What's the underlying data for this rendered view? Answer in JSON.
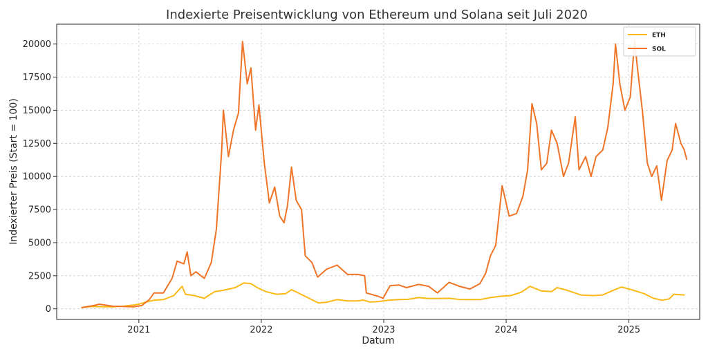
{
  "chart_data": {
    "type": "line",
    "title": "Indexierte Preisentwicklung von Ethereum und Solana seit Juli 2020",
    "xlabel": "Datum",
    "ylabel": "Indexierter Preis (Start = 100)",
    "x_axis_type": "date",
    "xlim": [
      "2020-05-01",
      "2025-07-31"
    ],
    "ylim": [
      -800,
      21500
    ],
    "x_ticks": [
      "2021",
      "2022",
      "2023",
      "2024",
      "2025"
    ],
    "x_tick_dates": [
      "2021-01-01",
      "2022-01-01",
      "2023-01-01",
      "2024-01-01",
      "2025-01-01"
    ],
    "y_ticks": [
      0,
      2500,
      5000,
      7500,
      10000,
      12500,
      15000,
      17500,
      20000
    ],
    "grid": true,
    "grid_style": "dashed",
    "legend_position": "top-right",
    "series": [
      {
        "name": "ETH",
        "color": "#FBB917",
        "points": [
          [
            "2020-07-15",
            100
          ],
          [
            "2020-08-15",
            180
          ],
          [
            "2020-09-15",
            160
          ],
          [
            "2020-10-15",
            150
          ],
          [
            "2020-11-15",
            200
          ],
          [
            "2020-12-15",
            280
          ],
          [
            "2021-01-01",
            350
          ],
          [
            "2021-01-20",
            500
          ],
          [
            "2021-02-15",
            650
          ],
          [
            "2021-03-15",
            700
          ],
          [
            "2021-04-15",
            1000
          ],
          [
            "2021-05-10",
            1700
          ],
          [
            "2021-05-20",
            1100
          ],
          [
            "2021-06-15",
            1000
          ],
          [
            "2021-07-15",
            800
          ],
          [
            "2021-08-15",
            1300
          ],
          [
            "2021-09-10",
            1400
          ],
          [
            "2021-10-15",
            1600
          ],
          [
            "2021-11-10",
            1950
          ],
          [
            "2021-12-01",
            1900
          ],
          [
            "2021-12-20",
            1600
          ],
          [
            "2022-01-15",
            1300
          ],
          [
            "2022-02-15",
            1100
          ],
          [
            "2022-03-15",
            1150
          ],
          [
            "2022-04-01",
            1450
          ],
          [
            "2022-05-15",
            900
          ],
          [
            "2022-06-20",
            450
          ],
          [
            "2022-07-15",
            500
          ],
          [
            "2022-08-15",
            700
          ],
          [
            "2022-09-15",
            600
          ],
          [
            "2022-10-15",
            600
          ],
          [
            "2022-11-01",
            660
          ],
          [
            "2022-11-20",
            520
          ],
          [
            "2022-12-15",
            550
          ],
          [
            "2023-01-15",
            650
          ],
          [
            "2023-02-15",
            700
          ],
          [
            "2023-03-15",
            720
          ],
          [
            "2023-04-15",
            850
          ],
          [
            "2023-05-15",
            780
          ],
          [
            "2023-06-15",
            780
          ],
          [
            "2023-07-15",
            800
          ],
          [
            "2023-08-15",
            710
          ],
          [
            "2023-09-15",
            700
          ],
          [
            "2023-10-15",
            700
          ],
          [
            "2023-11-15",
            850
          ],
          [
            "2023-12-15",
            950
          ],
          [
            "2024-01-15",
            1000
          ],
          [
            "2024-02-15",
            1250
          ],
          [
            "2024-03-12",
            1700
          ],
          [
            "2024-04-15",
            1350
          ],
          [
            "2024-05-15",
            1300
          ],
          [
            "2024-06-01",
            1600
          ],
          [
            "2024-07-01",
            1400
          ],
          [
            "2024-08-10",
            1050
          ],
          [
            "2024-09-15",
            1000
          ],
          [
            "2024-10-15",
            1050
          ],
          [
            "2024-11-15",
            1400
          ],
          [
            "2024-12-10",
            1650
          ],
          [
            "2025-01-15",
            1400
          ],
          [
            "2025-02-15",
            1150
          ],
          [
            "2025-03-15",
            800
          ],
          [
            "2025-04-10",
            650
          ],
          [
            "2025-05-01",
            750
          ],
          [
            "2025-05-15",
            1100
          ],
          [
            "2025-06-15",
            1050
          ]
        ]
      },
      {
        "name": "SOL",
        "color": "#F07427",
        "points": [
          [
            "2020-07-15",
            100
          ],
          [
            "2020-08-20",
            250
          ],
          [
            "2020-09-05",
            350
          ],
          [
            "2020-10-15",
            200
          ],
          [
            "2020-11-15",
            180
          ],
          [
            "2020-12-15",
            150
          ],
          [
            "2021-01-10",
            250
          ],
          [
            "2021-02-01",
            700
          ],
          [
            "2021-02-15",
            1200
          ],
          [
            "2021-03-15",
            1200
          ],
          [
            "2021-04-10",
            2300
          ],
          [
            "2021-04-25",
            3600
          ],
          [
            "2021-05-15",
            3400
          ],
          [
            "2021-05-25",
            4300
          ],
          [
            "2021-06-05",
            2500
          ],
          [
            "2021-06-20",
            2800
          ],
          [
            "2021-07-15",
            2300
          ],
          [
            "2021-08-05",
            3500
          ],
          [
            "2021-08-20",
            6000
          ],
          [
            "2021-09-05",
            12000
          ],
          [
            "2021-09-10",
            15000
          ],
          [
            "2021-09-25",
            11500
          ],
          [
            "2021-10-10",
            13500
          ],
          [
            "2021-10-25",
            14800
          ],
          [
            "2021-11-06",
            20200
          ],
          [
            "2021-11-20",
            17000
          ],
          [
            "2021-12-01",
            18200
          ],
          [
            "2021-12-15",
            13500
          ],
          [
            "2021-12-25",
            15400
          ],
          [
            "2022-01-10",
            11000
          ],
          [
            "2022-01-25",
            8000
          ],
          [
            "2022-02-10",
            9200
          ],
          [
            "2022-02-25",
            7000
          ],
          [
            "2022-03-10",
            6500
          ],
          [
            "2022-03-20",
            7800
          ],
          [
            "2022-04-01",
            10700
          ],
          [
            "2022-04-15",
            8200
          ],
          [
            "2022-05-01",
            7500
          ],
          [
            "2022-05-12",
            4000
          ],
          [
            "2022-06-01",
            3500
          ],
          [
            "2022-06-18",
            2400
          ],
          [
            "2022-07-15",
            3000
          ],
          [
            "2022-08-15",
            3300
          ],
          [
            "2022-09-15",
            2600
          ],
          [
            "2022-10-15",
            2600
          ],
          [
            "2022-11-05",
            2500
          ],
          [
            "2022-11-10",
            1200
          ],
          [
            "2022-12-15",
            950
          ],
          [
            "2022-12-30",
            800
          ],
          [
            "2023-01-20",
            1750
          ],
          [
            "2023-02-15",
            1800
          ],
          [
            "2023-03-10",
            1600
          ],
          [
            "2023-04-15",
            1850
          ],
          [
            "2023-05-15",
            1700
          ],
          [
            "2023-06-10",
            1200
          ],
          [
            "2023-07-15",
            2000
          ],
          [
            "2023-08-15",
            1700
          ],
          [
            "2023-09-15",
            1500
          ],
          [
            "2023-10-15",
            1900
          ],
          [
            "2023-11-01",
            2700
          ],
          [
            "2023-11-15",
            4000
          ],
          [
            "2023-12-01",
            4800
          ],
          [
            "2023-12-20",
            9300
          ],
          [
            "2024-01-10",
            7000
          ],
          [
            "2024-02-01",
            7200
          ],
          [
            "2024-02-20",
            8500
          ],
          [
            "2024-03-05",
            10500
          ],
          [
            "2024-03-18",
            15500
          ],
          [
            "2024-04-01",
            14000
          ],
          [
            "2024-04-15",
            10500
          ],
          [
            "2024-05-01",
            11000
          ],
          [
            "2024-05-15",
            13500
          ],
          [
            "2024-06-01",
            12500
          ],
          [
            "2024-06-20",
            10000
          ],
          [
            "2024-07-05",
            11000
          ],
          [
            "2024-07-25",
            14500
          ],
          [
            "2024-08-05",
            10500
          ],
          [
            "2024-08-25",
            11500
          ],
          [
            "2024-09-10",
            10000
          ],
          [
            "2024-09-25",
            11500
          ],
          [
            "2024-10-15",
            12000
          ],
          [
            "2024-10-30",
            13700
          ],
          [
            "2024-11-15",
            17000
          ],
          [
            "2024-11-22",
            20000
          ],
          [
            "2024-12-05",
            17000
          ],
          [
            "2024-12-20",
            15000
          ],
          [
            "2025-01-05",
            16000
          ],
          [
            "2025-01-18",
            20300
          ],
          [
            "2025-01-25",
            18500
          ],
          [
            "2025-02-10",
            15000
          ],
          [
            "2025-02-25",
            11000
          ],
          [
            "2025-03-10",
            10000
          ],
          [
            "2025-03-25",
            10800
          ],
          [
            "2025-04-08",
            8200
          ],
          [
            "2025-04-25",
            11200
          ],
          [
            "2025-05-10",
            12000
          ],
          [
            "2025-05-20",
            14000
          ],
          [
            "2025-06-05",
            12500
          ],
          [
            "2025-06-15",
            12000
          ],
          [
            "2025-06-22",
            11300
          ]
        ]
      }
    ]
  }
}
